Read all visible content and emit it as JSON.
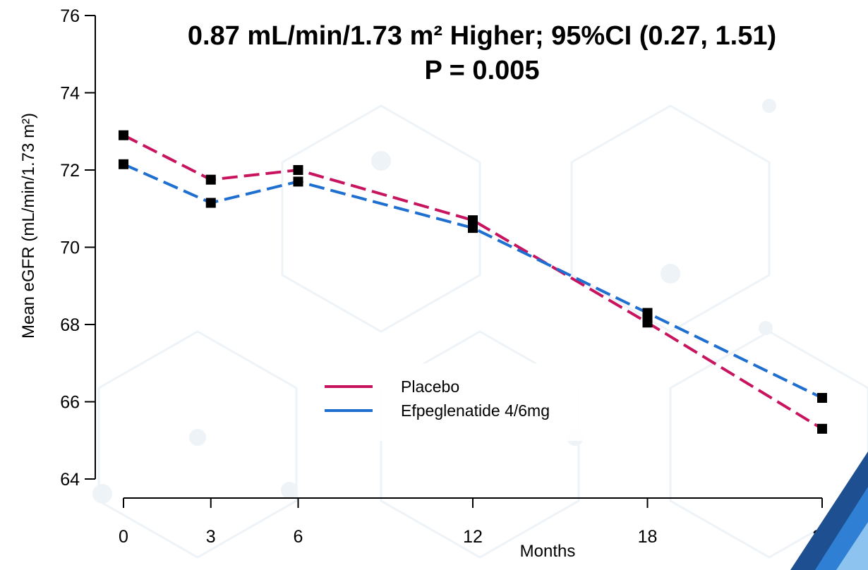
{
  "chart_data": {
    "type": "line",
    "title": "0.87 mL/min/1.73 m² Higher; 95%CI (0.27, 1.51)",
    "subtitle": "P = 0.005",
    "xlabel": "Months",
    "ylabel": "Mean eGFR (mL/min/1.73 m²)",
    "x": [
      0,
      3,
      6,
      12,
      18,
      24
    ],
    "x_tick_labels": [
      "0",
      "3",
      "6",
      "12",
      "18",
      "24"
    ],
    "ylim": [
      64,
      76
    ],
    "y_ticks": [
      64,
      66,
      68,
      70,
      72,
      74,
      76
    ],
    "y_tick_labels": [
      "64",
      "66",
      "68",
      "70",
      "72",
      "74",
      "76"
    ],
    "grid": false,
    "legend_position": "bottom-center",
    "series": [
      {
        "name": "Placebo",
        "color": "#c8145e",
        "line_style": "dashed",
        "values": [
          72.9,
          71.75,
          72.0,
          70.7,
          68.05,
          65.3
        ]
      },
      {
        "name": "Efpeglenatide 4/6mg",
        "color": "#1f6fd0",
        "line_style": "dashed",
        "values": [
          72.15,
          71.15,
          71.7,
          70.5,
          68.3,
          66.1
        ]
      }
    ]
  }
}
